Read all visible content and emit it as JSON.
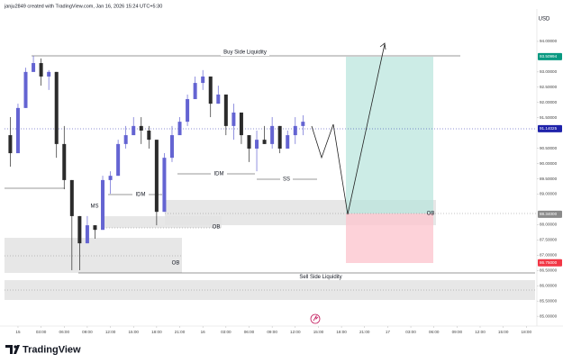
{
  "chart_data": {
    "type": "candlestick",
    "header": "janju2849 created with TradingView.com, Jan 16, 2026 15:24 UTC+5:30",
    "currency": "USD",
    "brand": "TradingView",
    "up_color": "#6464d2",
    "down_color": "#2b2b2b",
    "x": [
      -1,
      0,
      1,
      2,
      3,
      4,
      5,
      6,
      7,
      8,
      9,
      10,
      11,
      12,
      13,
      14,
      15,
      16,
      17,
      18,
      19,
      20,
      21,
      22,
      23,
      24,
      25,
      26,
      27,
      28,
      29,
      30,
      31,
      32,
      33,
      34,
      35,
      36,
      37
    ],
    "open": [
      90.93,
      90.34,
      91.82,
      93.0,
      93.29,
      92.85,
      93.0,
      90.64,
      89.46,
      88.28,
      87.39,
      87.98,
      87.83,
      89.46,
      89.6,
      90.64,
      90.93,
      91.23,
      91.08,
      90.78,
      88.42,
      90.19,
      90.93,
      91.37,
      92.11,
      92.64,
      92.85,
      91.96,
      92.26,
      91.23,
      91.67,
      90.93,
      90.49,
      90.78,
      90.64,
      91.23,
      90.49,
      90.93,
      91.23
    ],
    "high": [
      91.52,
      91.96,
      93.14,
      93.53,
      93.44,
      93.06,
      93.0,
      91.23,
      89.46,
      88.28,
      88.28,
      87.98,
      89.6,
      89.75,
      90.78,
      91.23,
      91.52,
      91.52,
      91.23,
      90.78,
      90.34,
      91.23,
      91.52,
      92.26,
      92.85,
      93.06,
      92.85,
      92.55,
      92.26,
      91.96,
      91.67,
      90.93,
      91.08,
      91.23,
      91.52,
      91.23,
      91.08,
      91.52,
      91.58
    ],
    "low": [
      89.9,
      90.34,
      91.82,
      93.0,
      92.55,
      92.41,
      90.19,
      89.16,
      86.51,
      86.51,
      87.39,
      87.54,
      87.83,
      89.01,
      89.6,
      90.49,
      90.93,
      90.64,
      90.49,
      87.98,
      88.42,
      90.05,
      90.93,
      91.23,
      92.11,
      92.41,
      91.52,
      91.96,
      90.93,
      90.78,
      90.64,
      90.05,
      89.75,
      90.64,
      90.49,
      90.34,
      90.49,
      90.64,
      90.93
    ],
    "close": [
      90.34,
      91.82,
      93.0,
      93.29,
      92.85,
      93.0,
      90.64,
      89.46,
      88.28,
      87.39,
      87.98,
      87.83,
      89.46,
      89.6,
      90.64,
      90.93,
      91.23,
      91.08,
      90.78,
      88.42,
      90.19,
      90.93,
      91.37,
      92.11,
      92.64,
      92.85,
      91.96,
      92.26,
      91.23,
      91.67,
      90.93,
      90.49,
      90.78,
      90.64,
      91.23,
      90.49,
      90.93,
      91.23,
      91.37
    ],
    "xlim": [
      -1.75,
      67.25
    ],
    "xticks": [
      {
        "value": 0,
        "label": "15"
      },
      {
        "value": 3,
        "label": "03:00"
      },
      {
        "value": 6,
        "label": "06:00"
      },
      {
        "value": 9,
        "label": "09:00"
      },
      {
        "value": 12,
        "label": "12:00"
      },
      {
        "value": 15,
        "label": "15:00"
      },
      {
        "value": 18,
        "label": "18:00"
      },
      {
        "value": 21,
        "label": "21:00"
      },
      {
        "value": 24,
        "label": "16"
      },
      {
        "value": 27,
        "label": "03:00"
      },
      {
        "value": 30,
        "label": "06:00"
      },
      {
        "value": 33,
        "label": "09:00"
      },
      {
        "value": 36,
        "label": "12:00"
      },
      {
        "value": 39,
        "label": "15:00"
      },
      {
        "value": 42,
        "label": "18:00"
      },
      {
        "value": 45,
        "label": "21:00"
      },
      {
        "value": 48,
        "label": "17"
      },
      {
        "value": 51,
        "label": "03:00"
      },
      {
        "value": 54,
        "label": "06:00"
      },
      {
        "value": 57,
        "label": "09:00"
      },
      {
        "value": 60,
        "label": "12:00"
      },
      {
        "value": 63,
        "label": "15:00"
      },
      {
        "value": 66,
        "label": "18:00"
      }
    ],
    "ylim": [
      84.68,
      95.06
    ],
    "yticks": [
      {
        "value": 85,
        "label": "85.00000"
      },
      {
        "value": 85.5,
        "label": "85.50000"
      },
      {
        "value": 86,
        "label": "86.00000"
      },
      {
        "value": 86.5,
        "label": "86.50000"
      },
      {
        "value": 87,
        "label": "87.00000"
      },
      {
        "value": 87.5,
        "label": "87.50000"
      },
      {
        "value": 88,
        "label": "88.00000"
      },
      {
        "value": 89,
        "label": "89.00000"
      },
      {
        "value": 89.5,
        "label": "89.50000"
      },
      {
        "value": 90,
        "label": "90.00000"
      },
      {
        "value": 90.5,
        "label": "90.50000"
      },
      {
        "value": 91.5,
        "label": "91.50000"
      },
      {
        "value": 92,
        "label": "92.00000"
      },
      {
        "value": 92.5,
        "label": "92.50000"
      },
      {
        "value": 93,
        "label": "93.00000"
      },
      {
        "value": 94,
        "label": "94.00000"
      }
    ],
    "price_labels": [
      {
        "value": 93.5,
        "label": "93.50994",
        "color": "#089981"
      },
      {
        "value": 91.14025,
        "label": "91.14025",
        "color": "#1e22aa"
      },
      {
        "value": 88.34,
        "label": "88.34000",
        "color": "#8a8a8a"
      },
      {
        "value": 86.75,
        "label": "86.75000",
        "color": "#f23645"
      }
    ],
    "annotations": [
      "Buy Side Liquidity",
      "Sell Side Liquidity",
      "IDM",
      "IDM",
      "SS",
      "MS",
      "OB",
      "OB",
      "OB"
    ]
  }
}
